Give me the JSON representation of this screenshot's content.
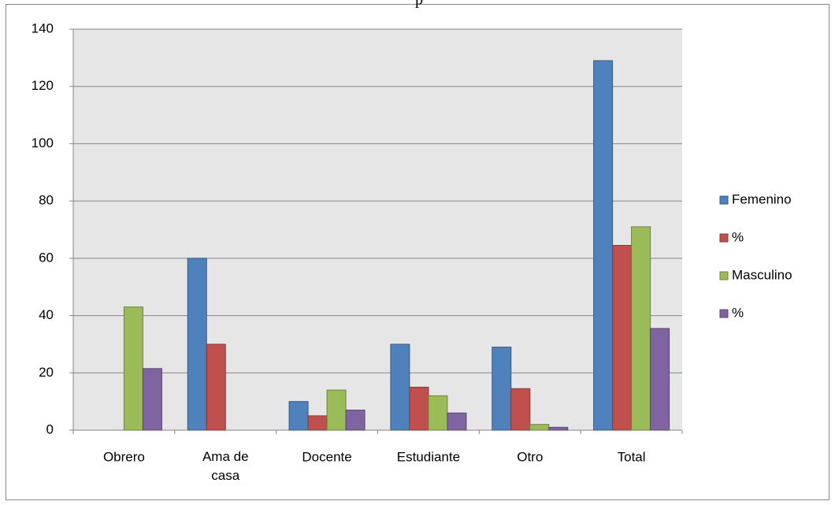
{
  "chart_data": {
    "type": "bar",
    "title": "p",
    "categories": [
      "Obrero",
      "Ama de casa",
      "Docente",
      "Estudiante",
      "Otro",
      "Total"
    ],
    "series": [
      {
        "name": "Femenino",
        "color": "#4f81bd",
        "values": [
          0,
          60,
          10,
          30,
          29,
          129
        ]
      },
      {
        "name": "%",
        "color": "#c0504d",
        "values": [
          0,
          30,
          5,
          15,
          14.5,
          64.5
        ]
      },
      {
        "name": "Masculino",
        "color": "#9bbb59",
        "values": [
          43,
          0,
          14,
          12,
          2,
          71
        ]
      },
      {
        "name": "%",
        "color": "#8064a2",
        "values": [
          21.5,
          0,
          7,
          6,
          1,
          35.5
        ]
      }
    ],
    "ylim": [
      0,
      140
    ],
    "yticks": [
      0,
      20,
      40,
      60,
      80,
      100,
      120,
      140
    ],
    "grid": true,
    "legend": "right"
  }
}
